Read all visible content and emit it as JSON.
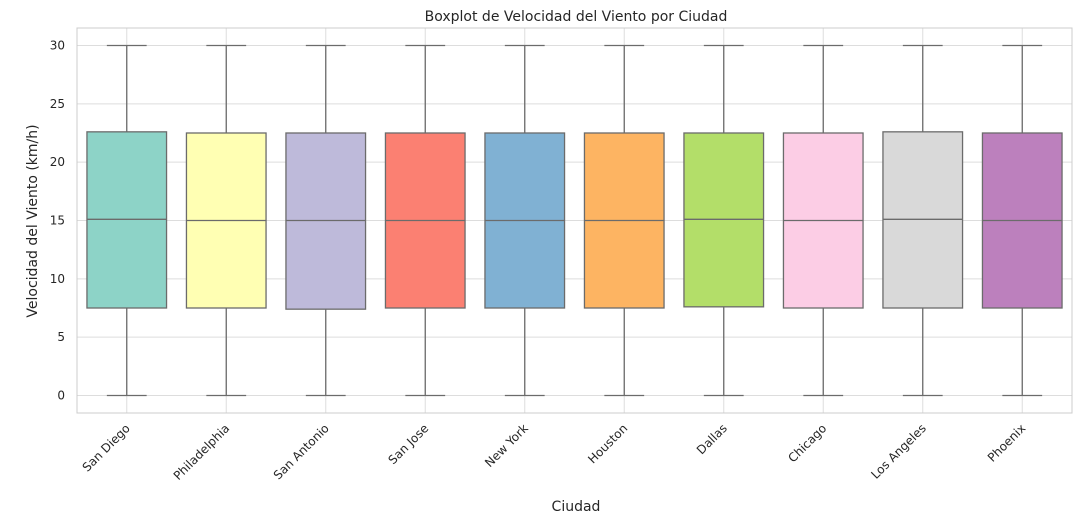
{
  "chart_data": {
    "type": "boxplot",
    "title": "Boxplot de Velocidad del Viento por Ciudad",
    "xlabel": "Ciudad",
    "ylabel": "Velocidad del Viento (km/h)",
    "ylim": [
      -1.5,
      31.5
    ],
    "yticks": [
      0,
      5,
      10,
      15,
      20,
      25,
      30
    ],
    "grid": true,
    "categories": [
      "San Diego",
      "Philadelphia",
      "San Antonio",
      "San Jose",
      "New York",
      "Houston",
      "Dallas",
      "Chicago",
      "Los Angeles",
      "Phoenix"
    ],
    "boxes": [
      {
        "min": 0,
        "q1": 7.5,
        "median": 15.1,
        "q3": 22.6,
        "max": 30
      },
      {
        "min": 0,
        "q1": 7.5,
        "median": 15.0,
        "q3": 22.5,
        "max": 30
      },
      {
        "min": 0,
        "q1": 7.4,
        "median": 15.0,
        "q3": 22.5,
        "max": 30
      },
      {
        "min": 0,
        "q1": 7.5,
        "median": 15.0,
        "q3": 22.5,
        "max": 30
      },
      {
        "min": 0,
        "q1": 7.5,
        "median": 15.0,
        "q3": 22.5,
        "max": 30
      },
      {
        "min": 0,
        "q1": 7.5,
        "median": 15.0,
        "q3": 22.5,
        "max": 30
      },
      {
        "min": 0,
        "q1": 7.6,
        "median": 15.1,
        "q3": 22.5,
        "max": 30
      },
      {
        "min": 0,
        "q1": 7.5,
        "median": 15.0,
        "q3": 22.5,
        "max": 30
      },
      {
        "min": 0,
        "q1": 7.5,
        "median": 15.1,
        "q3": 22.6,
        "max": 30
      },
      {
        "min": 0,
        "q1": 7.5,
        "median": 15.0,
        "q3": 22.5,
        "max": 30
      }
    ],
    "colors": [
      "#8dd3c7",
      "#ffffb3",
      "#bebada",
      "#fb8072",
      "#80b1d3",
      "#fdb462",
      "#b3de69",
      "#fccde5",
      "#d9d9d9",
      "#bc80bd"
    ]
  }
}
